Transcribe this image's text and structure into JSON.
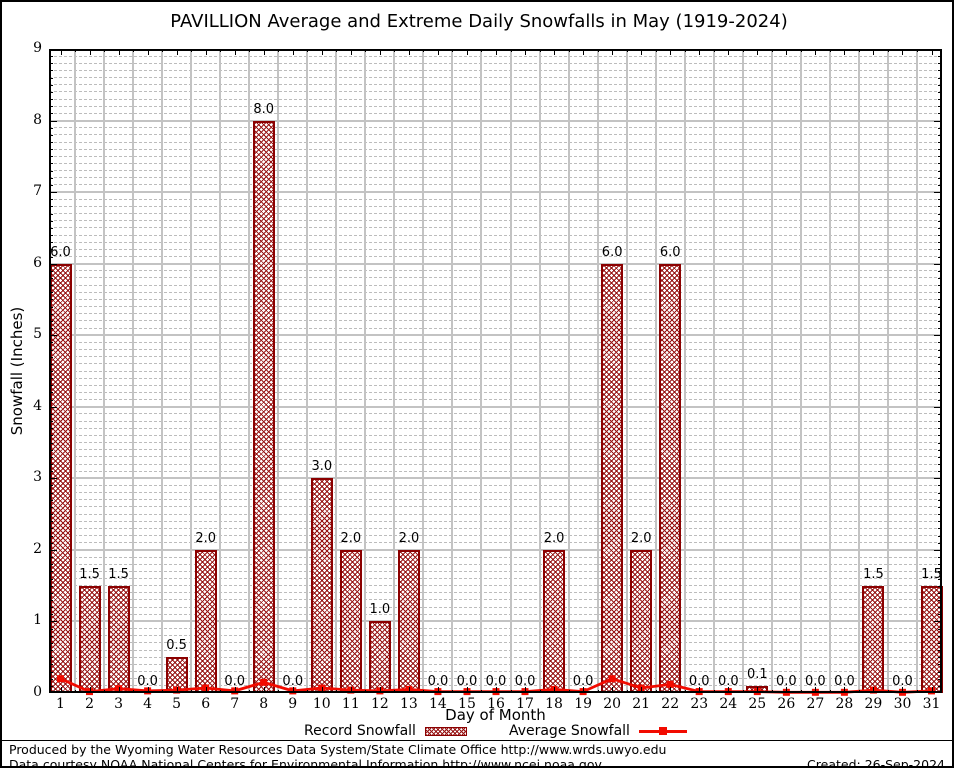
{
  "title": "PAVILLION Average and Extreme Daily Snowfalls in May (1919-2024)",
  "axes": {
    "y_label": "Snowfall (Inches)",
    "x_label": "Day of Month",
    "y_ticks": [
      "0",
      "1",
      "2",
      "3",
      "4",
      "5",
      "6",
      "7",
      "8",
      "9"
    ],
    "y_min": 0,
    "y_max": 9
  },
  "legend": {
    "record_label": "Record Snowfall",
    "average_label": "Average Snowfall"
  },
  "footer": {
    "line1": "Produced by the Wyoming Water Resources Data System/State Climate Office http://www.wrds.uwyo.edu",
    "line2": "Data courtesy NOAA National Centers for Environmental Information http://www.ncei.noaa.gov",
    "created": "Created: 26-Sep-2024"
  },
  "colors": {
    "bar_border": "#8b0000",
    "bar_hatch": "#971414",
    "avg_line": "#f20b00",
    "grid_major": "#c3c3c3",
    "grid_minor": "#bcbcbc",
    "axis": "#000000",
    "background": "#ffffff"
  },
  "chart_data": {
    "type": "bar",
    "title": "PAVILLION Average and Extreme Daily Snowfalls in May (1919-2024)",
    "xlabel": "Day of Month",
    "ylabel": "Snowfall (Inches)",
    "ylim": [
      0,
      9
    ],
    "grid": "major solid, minor dashed at 0.1",
    "legend_position": "bottom",
    "categories": [
      "1",
      "2",
      "3",
      "4",
      "5",
      "6",
      "7",
      "8",
      "9",
      "10",
      "11",
      "12",
      "13",
      "14",
      "15",
      "16",
      "17",
      "18",
      "19",
      "20",
      "21",
      "22",
      "23",
      "24",
      "25",
      "26",
      "27",
      "28",
      "29",
      "30",
      "31"
    ],
    "series": [
      {
        "name": "Record Snowfall",
        "type": "bar",
        "values": [
          6.0,
          1.5,
          1.5,
          0.0,
          0.5,
          2.0,
          0.0,
          8.0,
          0.0,
          3.0,
          2.0,
          1.0,
          2.0,
          0.0,
          0.0,
          0.0,
          0.0,
          2.0,
          0.0,
          6.0,
          2.0,
          6.0,
          0.0,
          0.0,
          0.1,
          0.0,
          0.0,
          0.0,
          1.5,
          0.0,
          1.5
        ],
        "labels": [
          "6.0",
          "1.5",
          "1.5",
          "0.0",
          "0.5",
          "2.0",
          "0.0",
          "8.0",
          "0.0",
          "3.0",
          "2.0",
          "1.0",
          "2.0",
          "0.0",
          "0.0",
          "0.0",
          "0.0",
          "2.0",
          "0.0",
          "6.0",
          "2.0",
          "6.0",
          "0.0",
          "0.0",
          "0.1",
          "0.0",
          "0.0",
          "0.0",
          "1.5",
          "0.0",
          "1.5"
        ]
      },
      {
        "name": "Average Snowfall",
        "type": "line",
        "values": [
          0.2,
          0.02,
          0.06,
          0.03,
          0.04,
          0.07,
          0.03,
          0.15,
          0.03,
          0.07,
          0.04,
          0.03,
          0.05,
          0.02,
          0.02,
          0.02,
          0.02,
          0.05,
          0.02,
          0.2,
          0.07,
          0.12,
          0.02,
          0.02,
          0.02,
          0.01,
          0.01,
          0.01,
          0.04,
          0.01,
          0.03
        ]
      }
    ]
  }
}
